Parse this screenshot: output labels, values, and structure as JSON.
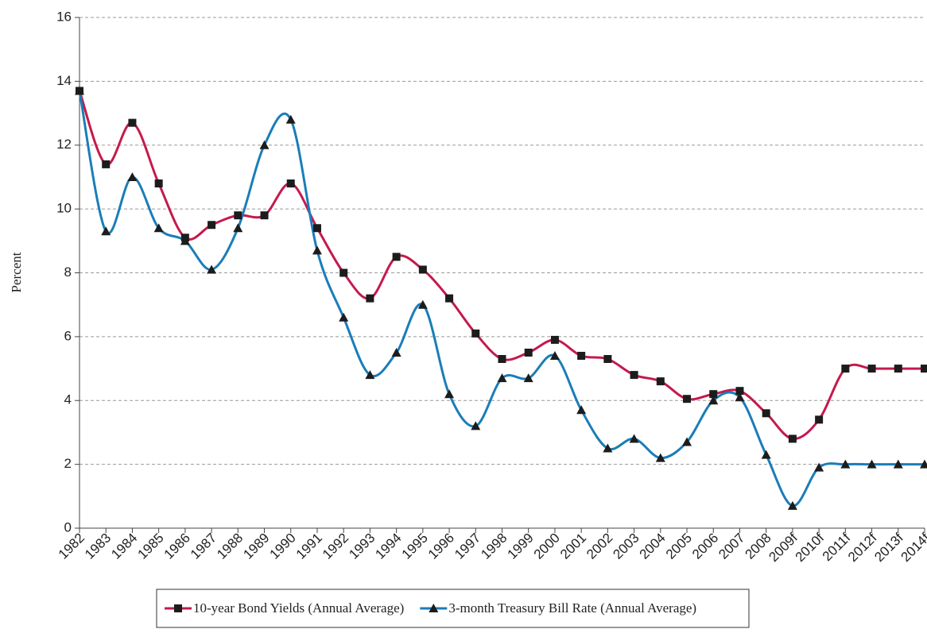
{
  "chart_data": {
    "type": "line",
    "y_label": "Percent",
    "categories": [
      "1982",
      "1983",
      "1984",
      "1985",
      "1986",
      "1987",
      "1988",
      "1989",
      "1990",
      "1991",
      "1992",
      "1993",
      "1994",
      "1995",
      "1996",
      "1997",
      "1998",
      "1999",
      "2000",
      "2001",
      "2002",
      "2003",
      "2004",
      "2005",
      "2006",
      "2007",
      "2008",
      "2009f",
      "2010f",
      "2011f",
      "2012f",
      "2013f",
      "2014f"
    ],
    "series": [
      {
        "name": "10-year Bond Yields (Annual Average)",
        "color": "#c41a4c",
        "marker": "square",
        "values": [
          13.7,
          11.4,
          12.7,
          10.8,
          9.1,
          9.5,
          9.8,
          9.8,
          10.8,
          9.4,
          8.0,
          7.2,
          8.5,
          8.1,
          7.2,
          6.1,
          5.3,
          5.5,
          5.9,
          5.4,
          5.3,
          4.8,
          4.6,
          4.05,
          4.2,
          4.3,
          3.6,
          2.8,
          3.4,
          5.0,
          5.0,
          5.0,
          5.0
        ]
      },
      {
        "name": "3-month Treasury Bill Rate (Annual Average)",
        "color": "#1a7db8",
        "marker": "triangle",
        "values": [
          13.7,
          9.3,
          11.0,
          9.4,
          9.0,
          8.1,
          9.4,
          12.0,
          12.8,
          8.7,
          6.6,
          4.8,
          5.5,
          7.0,
          4.2,
          3.2,
          4.7,
          4.7,
          5.4,
          3.7,
          2.5,
          2.8,
          2.2,
          2.7,
          4.0,
          4.1,
          2.3,
          0.7,
          1.9,
          2.0,
          2.0,
          2.0,
          2.0
        ]
      }
    ],
    "ylim": [
      0,
      16
    ],
    "yticks": [
      0,
      2,
      4,
      6,
      8,
      10,
      12,
      14,
      16
    ],
    "grid": true,
    "legend": "bottom"
  }
}
